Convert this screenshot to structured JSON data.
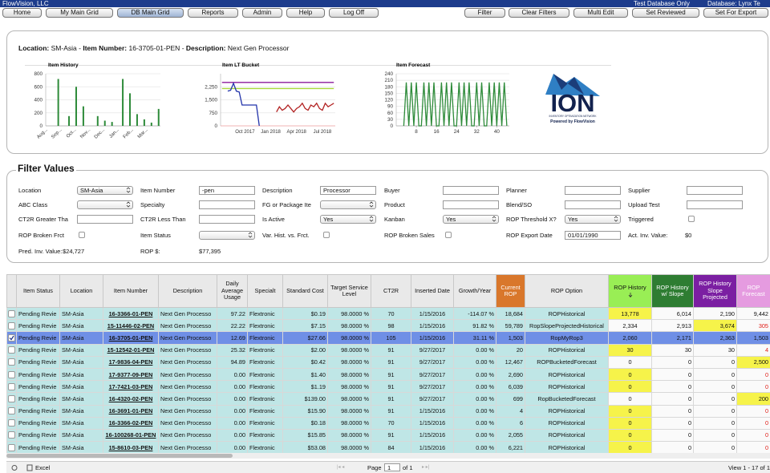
{
  "app": {
    "company": "FlowVision, LLC",
    "notice": "Test Database Only",
    "database": "Database: Lynx Te"
  },
  "nav": {
    "left": [
      "Home",
      "My Main Grid",
      "DB Main Grid",
      "Reports",
      "Admin",
      "Help",
      "Log Off"
    ],
    "right": [
      "Filter",
      "Clear Filters",
      "Multi Edit",
      "Set Reviewed",
      "Set For Export"
    ]
  },
  "detail": {
    "location_label": "Location:",
    "location": "SM-Asia",
    "separator": "-",
    "item_label": "Item Number:",
    "item": "16-3705-01-PEN",
    "description_label": "Description:",
    "description": "Next Gen Processor"
  },
  "chart_data": [
    {
      "type": "bar",
      "title": "Item History",
      "categories": [
        "Aug...",
        null,
        null,
        null,
        "Sep...",
        null,
        null,
        null,
        "Oct...",
        null,
        null,
        null,
        "Nov...",
        null,
        null,
        null,
        "Dec...",
        null,
        null,
        null,
        "Jan...",
        null,
        null,
        null,
        "Feb...",
        null,
        null,
        null,
        "Mar...",
        null,
        null,
        null
      ],
      "values": [
        0,
        0,
        0,
        720,
        0,
        0,
        150,
        0,
        600,
        0,
        300,
        0,
        0,
        0,
        150,
        0,
        80,
        0,
        60,
        0,
        0,
        720,
        0,
        500,
        0,
        180,
        0,
        100,
        0,
        50,
        0,
        260
      ],
      "color": "#2e8b3a",
      "ylim": [
        0,
        800
      ],
      "yticks": [
        0,
        200,
        400,
        600,
        800
      ],
      "grid": true
    },
    {
      "type": "line",
      "title": "Item LT Bucket",
      "categories": [
        null,
        null,
        null,
        null,
        null,
        null,
        null,
        null,
        "Oct 2017",
        null,
        null,
        null,
        null,
        null,
        null,
        null,
        null,
        "Jan 2018",
        null,
        null,
        null,
        null,
        null,
        null,
        null,
        null,
        "Apr 2018",
        null,
        null,
        null,
        null,
        null,
        null,
        null,
        null,
        "Jul 2018",
        null,
        null,
        null,
        null
      ],
      "series": [
        {
          "color": "#8b1a9b",
          "values": [
            2500,
            2500,
            2500,
            2500,
            2500,
            2500,
            2500,
            2500,
            2500,
            2500,
            2500,
            2500,
            2500,
            2500,
            2500,
            2500,
            2500,
            2500,
            2500,
            2500,
            2500,
            2500,
            2500,
            2500,
            2500,
            2500,
            2500,
            2500,
            2500,
            2500,
            2500,
            2500,
            2500,
            2500,
            2500,
            2500,
            2500,
            2500,
            2500,
            2500
          ]
        },
        {
          "color": "#a8d93a",
          "values": [
            2150,
            2150,
            2150,
            2150,
            2150,
            2150,
            2150,
            2150,
            2150,
            2150,
            2150,
            2150,
            2150,
            2150,
            2150,
            2150,
            2150,
            2150,
            2150,
            2150,
            2150,
            2150,
            2150,
            2150,
            2150,
            2150,
            2150,
            2150,
            2150,
            2150,
            2150,
            2150,
            2150,
            2150,
            2150,
            2150,
            2150,
            2150,
            2150,
            2150
          ]
        },
        {
          "color": "#2233aa",
          "values": [
            null,
            null,
            2000,
            2050,
            2450,
            2000,
            1950,
            1200,
            1200,
            1200,
            1200,
            1200,
            1200,
            0,
            null,
            null,
            null,
            null,
            null,
            null,
            null,
            null,
            null,
            null,
            null,
            null,
            null,
            null,
            null,
            null,
            null,
            null,
            null,
            null,
            null,
            null,
            null,
            null,
            null,
            null
          ]
        },
        {
          "color": "#b22222",
          "values": [
            null,
            null,
            null,
            null,
            null,
            null,
            null,
            null,
            null,
            null,
            null,
            null,
            null,
            null,
            null,
            null,
            null,
            null,
            null,
            800,
            1100,
            900,
            1000,
            1200,
            1000,
            800,
            1000,
            1100,
            1300,
            1000,
            900,
            1200,
            1100,
            1300,
            1000,
            900,
            1300,
            1100,
            1200,
            1300
          ]
        }
      ],
      "ylim": [
        0,
        3000
      ],
      "yticks": [
        0,
        750,
        {
          "value": 1500,
          "label": "1,500"
        },
        {
          "value": 2250,
          "label": "2,250"
        }
      ],
      "grid": true
    },
    {
      "type": "line",
      "title": "Item Forecast",
      "x": [
        1,
        2,
        3,
        4,
        5,
        6,
        7,
        8,
        9,
        10,
        11,
        12,
        13,
        14,
        15,
        16,
        17,
        18,
        19,
        20,
        21,
        22,
        23,
        24,
        25,
        26,
        27,
        28,
        29,
        30,
        31,
        32,
        33,
        34,
        35,
        36,
        37,
        38,
        39,
        40,
        41,
        42,
        43,
        44
      ],
      "series": [
        {
          "color": "#2e8b3a",
          "values": [
            null,
            null,
            0,
            200,
            0,
            200,
            0,
            200,
            0,
            0,
            200,
            0,
            200,
            0,
            200,
            0,
            0,
            200,
            0,
            200,
            0,
            200,
            0,
            0,
            200,
            0,
            200,
            0,
            200,
            0,
            0,
            200,
            0,
            200,
            0,
            0,
            200,
            0,
            200,
            0,
            200,
            0,
            200,
            0
          ]
        }
      ],
      "xlim": [
        0,
        45
      ],
      "xticks": [
        8,
        16,
        24,
        32,
        40
      ],
      "ylim": [
        0,
        240
      ],
      "yticks": [
        0,
        30,
        60,
        90,
        120,
        150,
        180,
        210,
        240
      ],
      "grid": true
    }
  ],
  "logo": {
    "mark": "ION",
    "tagline": "INVENTORY OPTIMIZATION NETWORK",
    "powered": "Powered by FlowVision"
  },
  "filters": {
    "title": "Filter Values",
    "fields": [
      {
        "label": "Location",
        "value": "SM-Asia"
      },
      {
        "label": "ABC Class"
      },
      {
        "label": "CT2R Greater Tha"
      },
      {
        "label": "ROP Broken Frct"
      },
      {
        "label": "Item Number",
        "value": "-pen"
      },
      {
        "label": "Specialty"
      },
      {
        "label": "CT2R Less Than"
      },
      {
        "label": "Item Status"
      },
      {
        "label": "Description",
        "value": "Processor"
      },
      {
        "label": "FG or Package Ite"
      },
      {
        "label": "Is Active",
        "value": "Yes"
      },
      {
        "label": "Var. Hist. vs. Frct."
      },
      {
        "label": "Buyer"
      },
      {
        "label": "Product"
      },
      {
        "label": "Kanban",
        "value": "Yes"
      },
      {
        "label": "ROP Broken Sales"
      },
      {
        "label": "Planner"
      },
      {
        "label": "Blend/SO"
      },
      {
        "label": "ROP Threshold X?",
        "value": "Yes"
      },
      {
        "label": "ROP Export Date",
        "value": "01/01/1990"
      },
      {
        "label": "Supplier"
      },
      {
        "label": "Upload Test"
      },
      {
        "label": "Triggered"
      }
    ],
    "summary": [
      {
        "label": "Pred. Inv. Value:",
        "value": "$24,727"
      },
      {
        "label": "ROP $:",
        "value": "$77,395"
      },
      {
        "label": "Act. Inv. Value:",
        "value": "$0"
      }
    ]
  },
  "table": {
    "columns": [
      "Item Status",
      "Location",
      "Item Number",
      "Description",
      "Daily Average Usage",
      "Specialt",
      "Standard Cost",
      "Target Service Level",
      "CT2R",
      "Inserted Date",
      "Growth/Year",
      "Current ROP",
      "ROP Option",
      "ROP History",
      "ROP History w/ Slope",
      "ROP History Slope Projected",
      "ROP Forecast"
    ],
    "rows": [
      [
        "Pending Revie",
        "SM-Asia",
        "16-3366-01-PEN",
        "Next Gen Processo",
        "97.22",
        "Flextronic",
        "$0.19",
        "98.0000 %",
        "70",
        "1/15/2016",
        "-114.07 %",
        "18,684",
        "ROPHistorical",
        "13,778",
        "6,014",
        "2,190",
        "9,442"
      ],
      [
        "Pending Revie",
        "SM-Asia",
        "15-11446-02-PEN",
        "Next Gen Processo",
        "22.22",
        "Flextronic",
        "$7.15",
        "98.0000 %",
        "98",
        "1/15/2016",
        "91.82 %",
        "59,789",
        "RopSlopeProjectedHistorical",
        "2,334",
        "2,913",
        "3,674",
        "305"
      ],
      [
        "Pending Revie",
        "SM-Asia",
        "16-3705-01-PEN",
        "Next Gen Processo",
        "12.69",
        "Flextronic",
        "$27.66",
        "98.0000 %",
        "105",
        "1/15/2016",
        "31.11 %",
        "1,503",
        "RopMyRop3",
        "2,060",
        "2,171",
        "2,363",
        "1,503"
      ],
      [
        "Pending Revie",
        "SM-Asia",
        "15-12542-01-PEN",
        "Next Gen Processo",
        "25.32",
        "Flextronic",
        "$2.00",
        "98.0000 %",
        "91",
        "9/27/2017",
        "0.00 %",
        "20",
        "ROPHistorical",
        "30",
        "30",
        "30",
        "4"
      ],
      [
        "Pending Revie",
        "SM-Asia",
        "17-9836-04-PEN",
        "Next Gen Processo",
        "94.89",
        "Flextronic",
        "$0.42",
        "98.0000 %",
        "91",
        "9/27/2017",
        "0.00 %",
        "12,467",
        "ROPBucketedForecast",
        "0",
        "0",
        "0",
        "2,500"
      ],
      [
        "Pending Revie",
        "SM-Asia",
        "17-9377-09-PEN",
        "Next Gen Processo",
        "0.00",
        "Flextronic",
        "$1.40",
        "98.0000 %",
        "91",
        "9/27/2017",
        "0.00 %",
        "2,690",
        "ROPHistorical",
        "0",
        "0",
        "0",
        "0"
      ],
      [
        "Pending Revie",
        "SM-Asia",
        "17-7421-03-PEN",
        "Next Gen Processo",
        "0.00",
        "Flextronic",
        "$1.19",
        "98.0000 %",
        "91",
        "9/27/2017",
        "0.00 %",
        "6,039",
        "ROPHistorical",
        "0",
        "0",
        "0",
        "0"
      ],
      [
        "Pending Revie",
        "SM-Asia",
        "16-4320-02-PEN",
        "Next Gen Processo",
        "0.00",
        "Flextronic",
        "$139.00",
        "98.0000 %",
        "91",
        "9/27/2017",
        "0.00 %",
        "699",
        "RopBucketedForecast",
        "0",
        "0",
        "0",
        "200"
      ],
      [
        "Pending Revie",
        "SM-Asia",
        "16-3691-01-PEN",
        "Next Gen Processo",
        "0.00",
        "Flextronic",
        "$15.90",
        "98.0000 %",
        "91",
        "1/15/2016",
        "0.00 %",
        "4",
        "ROPHistorical",
        "0",
        "0",
        "0",
        "0"
      ],
      [
        "Pending Revie",
        "SM-Asia",
        "16-3366-02-PEN",
        "Next Gen Processo",
        "0.00",
        "Flextronic",
        "$0.18",
        "98.0000 %",
        "70",
        "1/15/2016",
        "0.00 %",
        "6",
        "ROPHistorical",
        "0",
        "0",
        "0",
        "0"
      ],
      [
        "Pending Revie",
        "SM-Asia",
        "16-100268-01-PEN",
        "Next Gen Processo",
        "0.00",
        "Flextronic",
        "$15.85",
        "98.0000 %",
        "91",
        "1/15/2016",
        "0.00 %",
        "2,055",
        "ROPHistorical",
        "0",
        "0",
        "0",
        "0"
      ],
      [
        "Pending Revie",
        "SM-Asia",
        "15-8610-03-PEN",
        "Next Gen Processo",
        "0.00",
        "Flextronic",
        "$53.08",
        "98.0000 %",
        "84",
        "1/15/2016",
        "0.00 %",
        "6,221",
        "ROPHistorical",
        "0",
        "0",
        "0",
        "0"
      ]
    ]
  },
  "footer": {
    "export": "Excel",
    "page_label": "Page",
    "page": "1",
    "of": "of 1",
    "view": "View 1 - 17 of 1"
  }
}
